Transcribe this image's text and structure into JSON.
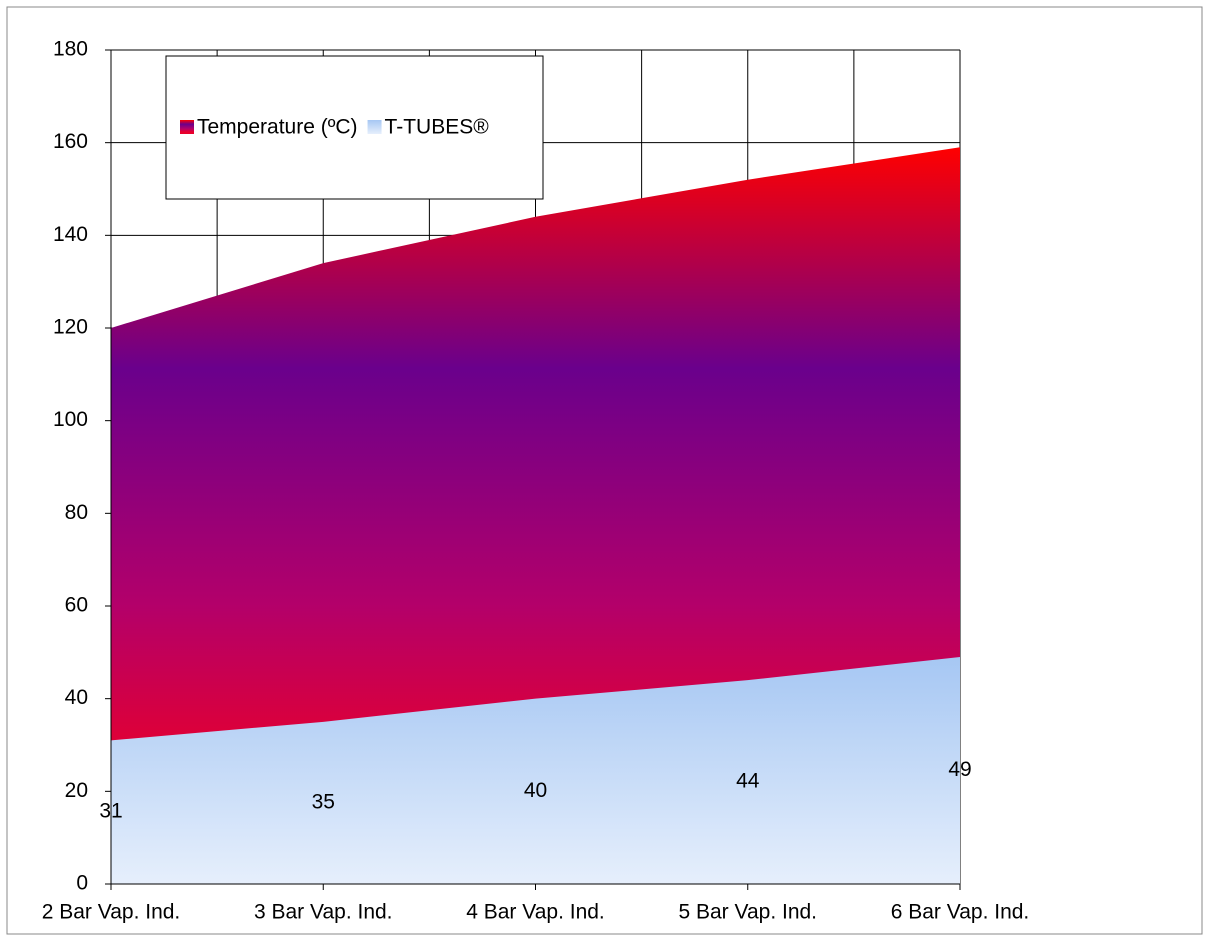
{
  "chart_data": {
    "type": "area",
    "categories": [
      "2 Bar Vap. Ind.",
      "3 Bar Vap. Ind.",
      "4 Bar Vap. Ind.",
      "5 Bar Vap. Ind.",
      "6 Bar Vap. Ind."
    ],
    "series": [
      {
        "name": "Temperature (ºC)",
        "color": [
          "#ff0000",
          "#6a008c",
          "#b3006a",
          "#e8002c"
        ],
        "values": [
          120,
          134,
          144,
          152,
          159
        ]
      },
      {
        "name": "T-TUBES®",
        "color": [
          "#a6c7f3",
          "#e6effc"
        ],
        "values": [
          31,
          35,
          40,
          44,
          49
        ],
        "data_labels": true
      }
    ],
    "ylim": [
      0,
      180
    ],
    "yticks": [
      0,
      20,
      40,
      60,
      80,
      100,
      120,
      140,
      160,
      180
    ],
    "grid": true
  }
}
